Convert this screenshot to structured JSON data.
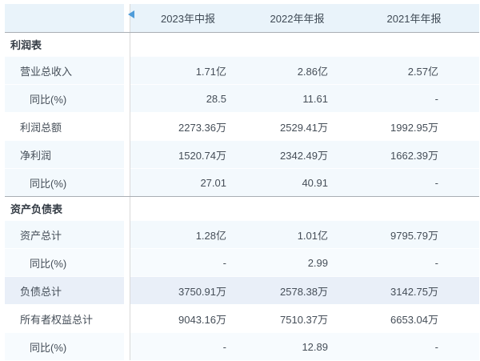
{
  "table": {
    "columns": [
      "2023年中报",
      "2022年年报",
      "2021年年报"
    ],
    "label_column_header": "",
    "collapse_icon": "left-triangle-icon",
    "rows": [
      {
        "type": "section",
        "label": "利润表",
        "values": [
          "",
          "",
          ""
        ],
        "bg": "white"
      },
      {
        "type": "metric",
        "label": "营业总收入",
        "values": [
          "1.71亿",
          "2.86亿",
          "2.57亿"
        ],
        "bg": "blue"
      },
      {
        "type": "sub",
        "label": "同比(%)",
        "values": [
          "28.5",
          "11.61",
          "-"
        ],
        "bg": "blue"
      },
      {
        "type": "metric",
        "label": "利润总额",
        "values": [
          "2273.36万",
          "2529.41万",
          "1992.95万"
        ],
        "bg": "white"
      },
      {
        "type": "metric",
        "label": "净利润",
        "values": [
          "1520.74万",
          "2342.49万",
          "1662.39万"
        ],
        "bg": "blue"
      },
      {
        "type": "sub",
        "label": "同比(%)",
        "values": [
          "27.01",
          "40.91",
          "-"
        ],
        "bg": "blue"
      },
      {
        "type": "section",
        "label": "资产负债表",
        "values": [
          "",
          "",
          ""
        ],
        "bg": "white"
      },
      {
        "type": "metric",
        "label": "资产总计",
        "values": [
          "1.28亿",
          "1.01亿",
          "9795.79万"
        ],
        "bg": "blue"
      },
      {
        "type": "sub",
        "label": "同比(%)",
        "values": [
          "-",
          "2.99",
          "-"
        ],
        "bg": "faint"
      },
      {
        "type": "metric",
        "label": "负债总计",
        "values": [
          "3750.91万",
          "2578.38万",
          "3142.75万"
        ],
        "bg": "highlight"
      },
      {
        "type": "metric",
        "label": "所有者权益总计",
        "values": [
          "9043.16万",
          "7510.37万",
          "6653.04万"
        ],
        "bg": "white"
      },
      {
        "type": "sub",
        "label": "同比(%)",
        "values": [
          "-",
          "12.89",
          "-"
        ],
        "bg": "faint"
      }
    ]
  },
  "colors": {
    "header_bg": "#e9f3fa",
    "row_alt_bg": "#f3f9fd",
    "row_faint_bg": "#f7fbfe",
    "highlight_row_bg": "#e9eff8",
    "section_divider": "#a9aeb4",
    "column_divider": "#d9d9d9",
    "arrow_color": "#4f9cd9",
    "text_color": "#454e58"
  }
}
